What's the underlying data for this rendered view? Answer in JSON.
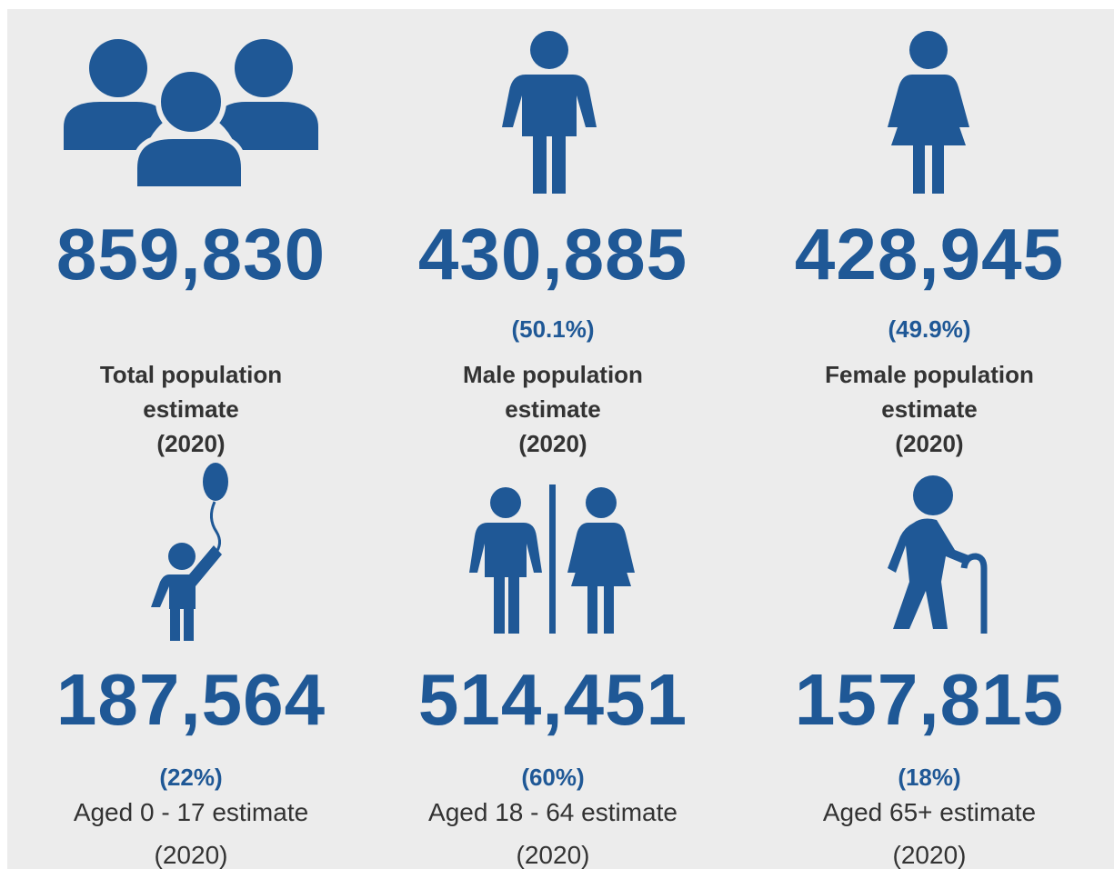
{
  "cards": [
    {
      "value": "859,830",
      "percent": null,
      "label": "Total population estimate",
      "year": "(2020)"
    },
    {
      "value": "430,885",
      "percent": "(50.1%)",
      "label": "Male population estimate",
      "year": "(2020)"
    },
    {
      "value": "428,945",
      "percent": "(49.9%)",
      "label": "Female population estimate",
      "year": "(2020)"
    },
    {
      "value": "187,564",
      "percent": "(22%)",
      "label": "Aged 0 - 17 estimate",
      "year": "(2020)"
    },
    {
      "value": "514,451",
      "percent": "(60%)",
      "label": "Aged 18 - 64 estimate",
      "year": "(2020)"
    },
    {
      "value": "157,815",
      "percent": "(18%)",
      "label": "Aged 65+ estimate",
      "year": "(2020)"
    }
  ]
}
